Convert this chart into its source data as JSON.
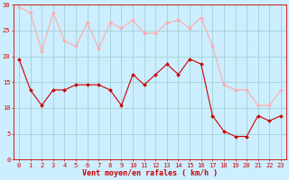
{
  "x": [
    0,
    1,
    2,
    3,
    4,
    5,
    6,
    7,
    8,
    9,
    10,
    11,
    12,
    13,
    14,
    15,
    16,
    17,
    18,
    19,
    20,
    21,
    22,
    23
  ],
  "wind_avg": [
    19.5,
    13.5,
    10.5,
    13.5,
    13.5,
    14.5,
    14.5,
    14.5,
    13.5,
    10.5,
    16.5,
    14.5,
    16.5,
    18.5,
    16.5,
    19.5,
    18.5,
    8.5,
    5.5,
    4.5,
    4.5,
    8.5,
    7.5,
    8.5
  ],
  "wind_gust": [
    29.5,
    28.5,
    21.0,
    28.5,
    23.0,
    22.0,
    26.5,
    21.5,
    26.5,
    25.5,
    27.0,
    24.5,
    24.5,
    26.5,
    27.0,
    25.5,
    27.5,
    22.0,
    14.5,
    13.5,
    13.5,
    10.5,
    10.5,
    13.5
  ],
  "color_avg": "#cc0000",
  "color_gust": "#ffaaaa",
  "bg_color": "#cceeff",
  "grid_color": "#99cccc",
  "axis_color": "#cc0000",
  "xlabel": "Vent moyen/en rafales ( km/h )",
  "ylim": [
    0,
    30
  ],
  "yticks": [
    0,
    5,
    10,
    15,
    20,
    25,
    30
  ],
  "xticks": [
    0,
    1,
    2,
    3,
    4,
    5,
    6,
    7,
    8,
    9,
    10,
    11,
    12,
    13,
    14,
    15,
    16,
    17,
    18,
    19,
    20,
    21,
    22,
    23
  ],
  "xlabel_fontsize": 6,
  "tick_fontsize": 5,
  "marker_size": 2,
  "line_width": 0.8
}
